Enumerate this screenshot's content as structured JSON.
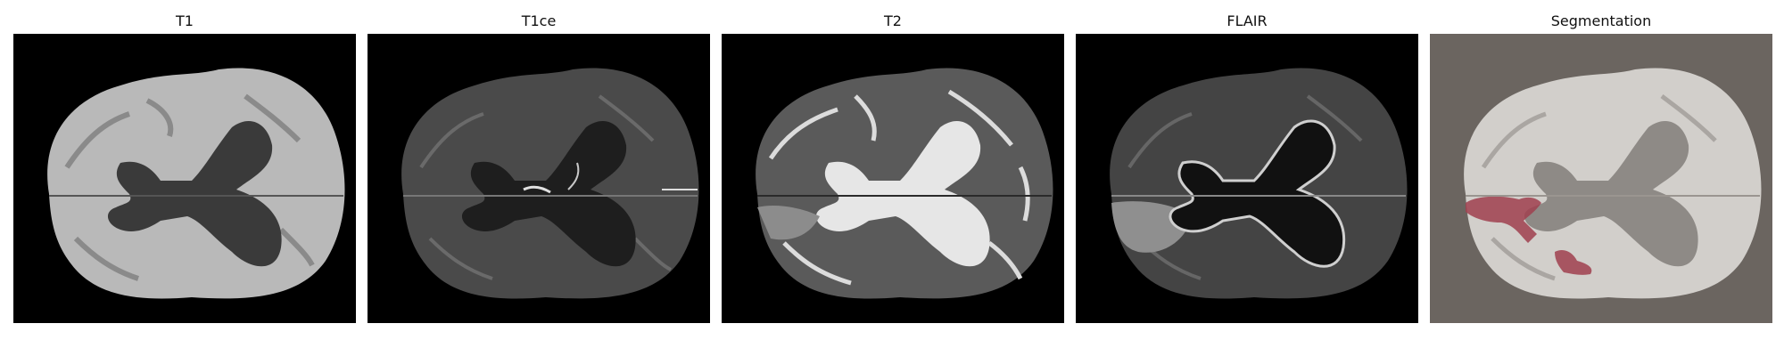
{
  "panels": [
    {
      "title": "T1",
      "modality": "t1"
    },
    {
      "title": "T1ce",
      "modality": "t1ce"
    },
    {
      "title": "T2",
      "modality": "t2"
    },
    {
      "title": "FLAIR",
      "modality": "flair"
    },
    {
      "title": "Segmentation",
      "modality": "segmentation"
    }
  ],
  "colors": {
    "segmentation_background": "#6b6560",
    "lesion": "#a0404f"
  }
}
